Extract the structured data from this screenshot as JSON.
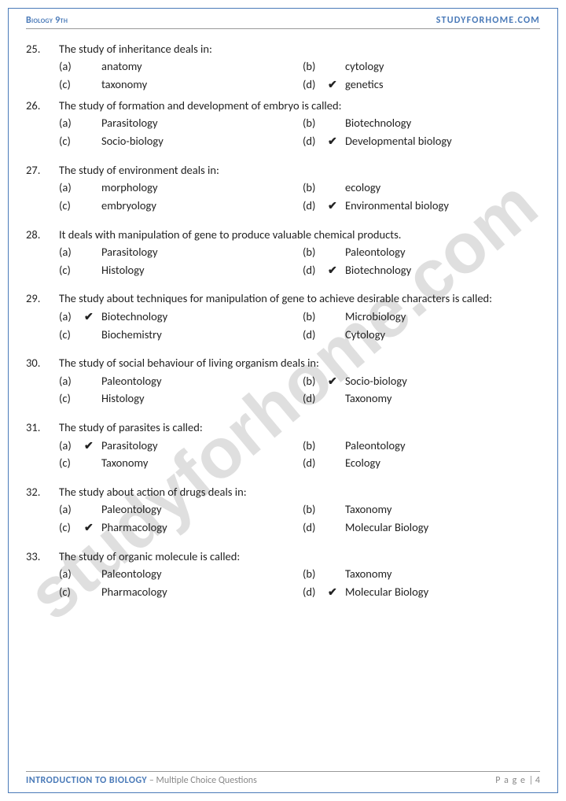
{
  "header": {
    "left": "Biology 9th",
    "right": "STUDYFORHOME.COM"
  },
  "watermark": "studyforhome.com",
  "footer": {
    "title_blue": "INTRODUCTION TO BIOLOGY",
    "title_grey": " – Multiple Choice Questions",
    "page_label": "P a g e ",
    "page_sep": "| ",
    "page_num": "4"
  },
  "tick": "✔",
  "questions": [
    {
      "num": "25.",
      "text": "The study of inheritance deals in:",
      "tight": true,
      "opts": [
        {
          "lbl": "(a)",
          "val": "anatomy",
          "correct": false
        },
        {
          "lbl": "(b)",
          "val": "cytology",
          "correct": false
        },
        {
          "lbl": "(c)",
          "val": "taxonomy",
          "correct": false
        },
        {
          "lbl": "(d)",
          "val": "genetics",
          "correct": true
        }
      ]
    },
    {
      "num": "26.",
      "text": "The study of formation and development of embryo is called:",
      "opts": [
        {
          "lbl": "(a)",
          "val": "Parasitology",
          "correct": false
        },
        {
          "lbl": "(b)",
          "val": "Biotechnology",
          "correct": false
        },
        {
          "lbl": "(c)",
          "val": "Socio-biology",
          "correct": false
        },
        {
          "lbl": "(d)",
          "val": "Developmental biology",
          "correct": true
        }
      ]
    },
    {
      "num": "27.",
      "text": "The study of environment deals in:",
      "opts": [
        {
          "lbl": "(a)",
          "val": "morphology",
          "correct": false
        },
        {
          "lbl": "(b)",
          "val": "ecology",
          "correct": false
        },
        {
          "lbl": "(c)",
          "val": "embryology",
          "correct": false
        },
        {
          "lbl": "(d)",
          "val": "Environmental biology",
          "correct": true
        }
      ]
    },
    {
      "num": "28.",
      "text": "It deals with manipulation of gene to produce valuable chemical products.",
      "opts": [
        {
          "lbl": "(a)",
          "val": "Parasitology",
          "correct": false
        },
        {
          "lbl": "(b)",
          "val": "Paleontology",
          "correct": false
        },
        {
          "lbl": "(c)",
          "val": "Histology",
          "correct": false
        },
        {
          "lbl": "(d)",
          "val": "Biotechnology",
          "correct": true
        }
      ]
    },
    {
      "num": "29.",
      "text": "The study about techniques for manipulation of gene to achieve desirable characters is called:",
      "opts": [
        {
          "lbl": "(a)",
          "val": "Biotechnology",
          "correct": true
        },
        {
          "lbl": "(b)",
          "val": "Microbiology",
          "correct": false
        },
        {
          "lbl": "(c)",
          "val": "Biochemistry",
          "correct": false
        },
        {
          "lbl": "(d)",
          "val": "Cytology",
          "correct": false
        }
      ]
    },
    {
      "num": "30.",
      "text": "The study of social behaviour of living organism deals in:",
      "opts": [
        {
          "lbl": "(a)",
          "val": "Paleontology",
          "correct": false
        },
        {
          "lbl": "(b)",
          "val": "Socio-biology",
          "correct": true
        },
        {
          "lbl": "(c)",
          "val": "Histology",
          "correct": false
        },
        {
          "lbl": "(d)",
          "val": "Taxonomy",
          "correct": false
        }
      ]
    },
    {
      "num": "31.",
      "text": "The study of parasites is called:",
      "opts": [
        {
          "lbl": "(a)",
          "val": "Parasitology",
          "correct": true
        },
        {
          "lbl": "(b)",
          "val": "Paleontology",
          "correct": false
        },
        {
          "lbl": "(c)",
          "val": "Taxonomy",
          "correct": false
        },
        {
          "lbl": "(d)",
          "val": "Ecology",
          "correct": false
        }
      ]
    },
    {
      "num": "32.",
      "text": "The study about action of drugs deals in:",
      "opts": [
        {
          "lbl": "(a)",
          "val": "Paleontology",
          "correct": false
        },
        {
          "lbl": "(b)",
          "val": "Taxonomy",
          "correct": false
        },
        {
          "lbl": "(c)",
          "val": "Pharmacology",
          "correct": true
        },
        {
          "lbl": "(d)",
          "val": "Molecular Biology",
          "correct": false
        }
      ]
    },
    {
      "num": "33.",
      "text": "The study of organic molecule is called:",
      "opts": [
        {
          "lbl": "(a)",
          "val": "Paleontology",
          "correct": false
        },
        {
          "lbl": "(b)",
          "val": "Taxonomy",
          "correct": false
        },
        {
          "lbl": "(c)",
          "val": "Pharmacology",
          "correct": false
        },
        {
          "lbl": "(d)",
          "val": "Molecular Biology",
          "correct": true
        }
      ]
    }
  ]
}
